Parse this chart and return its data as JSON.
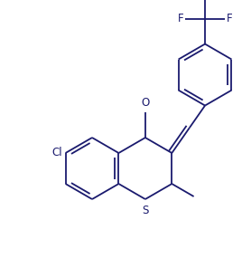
{
  "line_color": "#1a1a6e",
  "bg_color": "#ffffff",
  "line_width": 1.3,
  "font_size": 8.5,
  "figsize": [
    2.68,
    2.96
  ],
  "dpi": 100,
  "xlim": [
    0,
    268
  ],
  "ylim": [
    0,
    296
  ]
}
